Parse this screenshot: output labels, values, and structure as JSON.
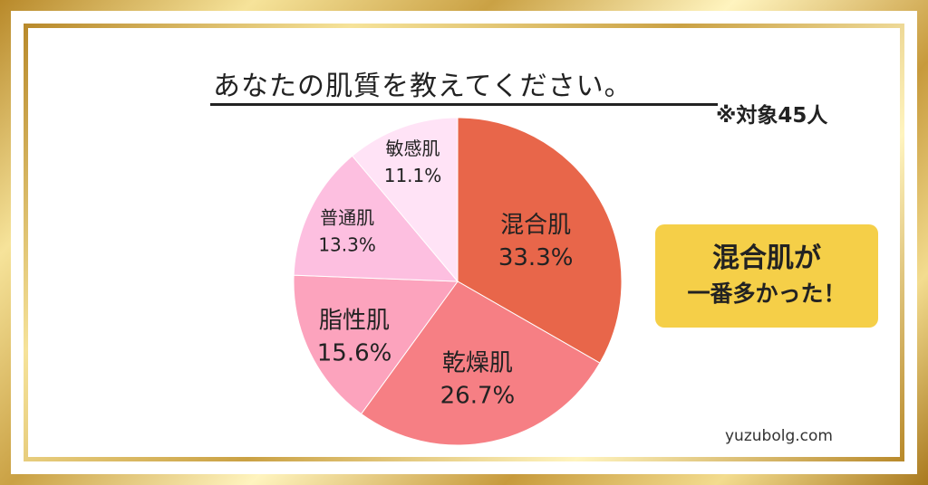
{
  "header": {
    "title": "あなたの肌質を教えてください。",
    "note": "※対象45人"
  },
  "callout": {
    "line1": "混合肌が",
    "line2": "一番多かった！"
  },
  "footer": {
    "site": "yuzubolg.com"
  },
  "colors": {
    "frame_gold": "#caa144",
    "callout_bg": "#f5cf48"
  },
  "chart_data": {
    "type": "pie",
    "title": "あなたの肌質を教えてください。",
    "labels": [
      "混合肌",
      "乾燥肌",
      "脂性肌",
      "普通肌",
      "敏感肌"
    ],
    "values": [
      33.3,
      26.7,
      15.6,
      13.3,
      11.1
    ],
    "value_labels": [
      "33.3%",
      "26.7%",
      "15.6%",
      "13.3%",
      "11.1%"
    ],
    "colors": [
      "#e8664a",
      "#f67f84",
      "#fca3bd",
      "#fdbfe0",
      "#ffe3f6"
    ],
    "start": "top",
    "direction": "clockwise"
  }
}
